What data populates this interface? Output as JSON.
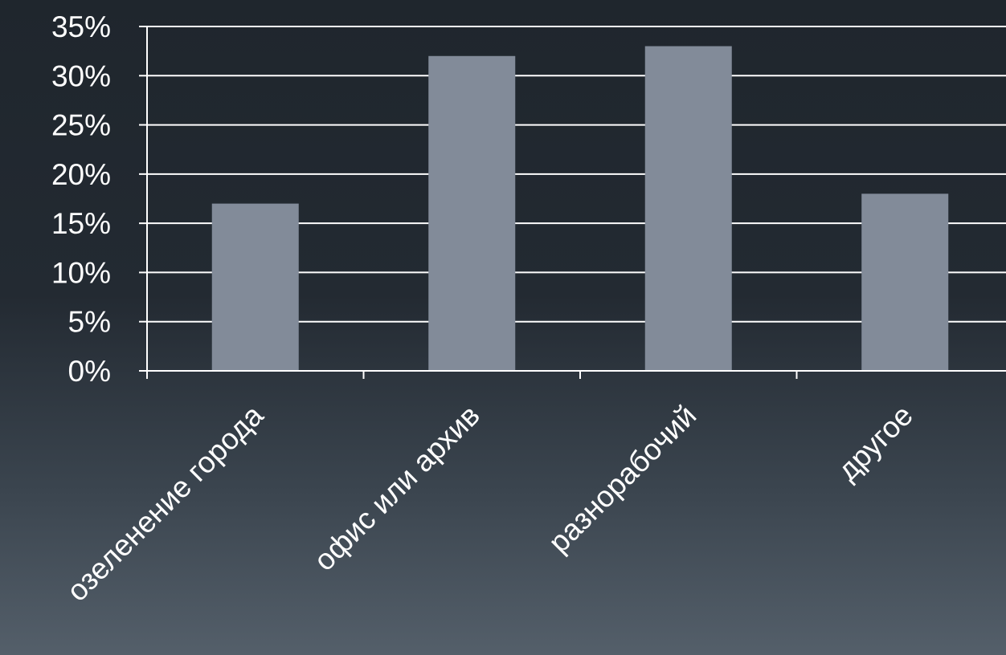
{
  "chart_data": {
    "type": "bar",
    "title": "",
    "xlabel": "",
    "ylabel": "",
    "categories": [
      "озеленение города",
      "офис или архив",
      "разнорабочий",
      "другое"
    ],
    "values": [
      17,
      32,
      33,
      18
    ],
    "unit": "%",
    "ylim": [
      0,
      35
    ],
    "yticks": [
      0,
      5,
      10,
      15,
      20,
      25,
      30,
      35
    ],
    "ytick_labels": [
      "0%",
      "5%",
      "10%",
      "15%",
      "20%",
      "25%",
      "30%",
      "35%"
    ],
    "grid": true,
    "legend": "none"
  },
  "colors": {
    "bar": "#828b99",
    "grid": "#ffffff",
    "axis": "#ffffff",
    "text": "#ffffff",
    "background_top": "#1f262d",
    "background_bottom": "#545f6a"
  }
}
